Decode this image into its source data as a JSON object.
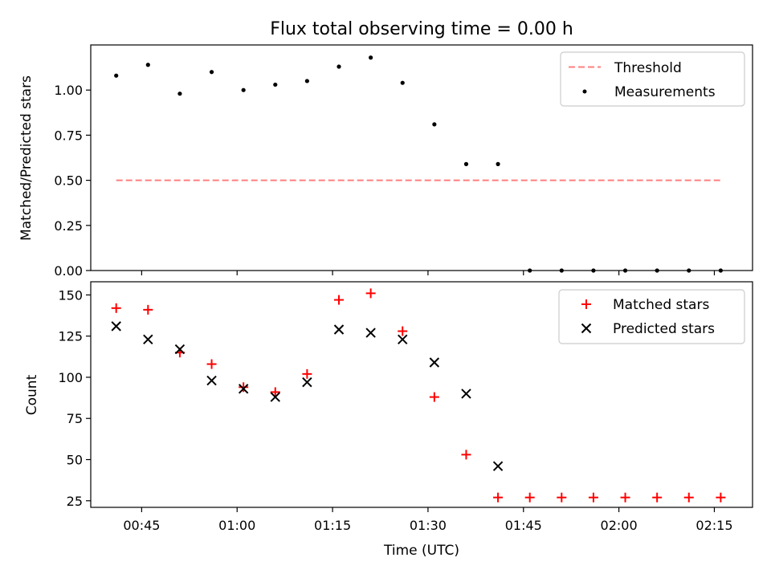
{
  "chart_data": [
    {
      "type": "scatter",
      "title": "Flux total observing time = 0.00 h",
      "xlabel": "",
      "ylabel": "Matched/Predicted stars",
      "xlim": [
        "00:37",
        "02:21"
      ],
      "ylim": [
        0,
        1.25
      ],
      "yticks": [
        0.0,
        0.25,
        0.5,
        0.75,
        1.0
      ],
      "ytick_labels": [
        "0.00",
        "0.25",
        "0.50",
        "0.75",
        "1.00"
      ],
      "grid": false,
      "legend_position": "top-right",
      "series": [
        {
          "name": "Threshold",
          "kind": "dashed-line",
          "color": "#ff7f7f",
          "x": [
            "00:41",
            "02:16"
          ],
          "y": [
            0.5,
            0.5
          ]
        },
        {
          "name": "Measurements",
          "kind": "dot",
          "color": "#000000",
          "x": [
            "00:41",
            "00:46",
            "00:51",
            "00:56",
            "01:01",
            "01:06",
            "01:11",
            "01:16",
            "01:21",
            "01:26",
            "01:31",
            "01:36",
            "01:41",
            "01:46",
            "01:51",
            "01:56",
            "02:01",
            "02:06",
            "02:11",
            "02:16"
          ],
          "y": [
            1.08,
            1.14,
            0.98,
            1.1,
            1.0,
            1.03,
            1.05,
            1.13,
            1.18,
            1.04,
            0.81,
            0.59,
            0.59,
            0.0,
            0.0,
            0.0,
            0.0,
            0.0,
            0.0,
            0.0
          ]
        }
      ]
    },
    {
      "type": "scatter",
      "title": "",
      "xlabel": "Time (UTC)",
      "ylabel": "Count",
      "xlim": [
        "00:37",
        "02:21"
      ],
      "ylim": [
        21,
        158
      ],
      "xticks": [
        "00:45",
        "01:00",
        "01:15",
        "01:30",
        "01:45",
        "02:00",
        "02:15"
      ],
      "yticks": [
        25,
        50,
        75,
        100,
        125,
        150
      ],
      "grid": false,
      "legend_position": "top-right",
      "series": [
        {
          "name": "Matched stars",
          "kind": "plus",
          "color": "#ff0000",
          "x": [
            "00:41",
            "00:46",
            "00:51",
            "00:56",
            "01:01",
            "01:06",
            "01:11",
            "01:16",
            "01:21",
            "01:26",
            "01:31",
            "01:36",
            "01:41",
            "01:46",
            "01:51",
            "01:56",
            "02:01",
            "02:06",
            "02:11",
            "02:16"
          ],
          "y": [
            142,
            141,
            115,
            108,
            94,
            91,
            102,
            147,
            151,
            128,
            88,
            53,
            27,
            27,
            27,
            27,
            27,
            27,
            27,
            27
          ]
        },
        {
          "name": "Predicted stars",
          "kind": "cross",
          "color": "#000000",
          "x": [
            "00:41",
            "00:46",
            "00:51",
            "00:56",
            "01:01",
            "01:06",
            "01:11",
            "01:16",
            "01:21",
            "01:26",
            "01:31",
            "01:36",
            "01:41"
          ],
          "y": [
            131,
            123,
            117,
            98,
            93,
            88,
            97,
            129,
            127,
            123,
            109,
            90,
            46
          ]
        }
      ]
    }
  ]
}
